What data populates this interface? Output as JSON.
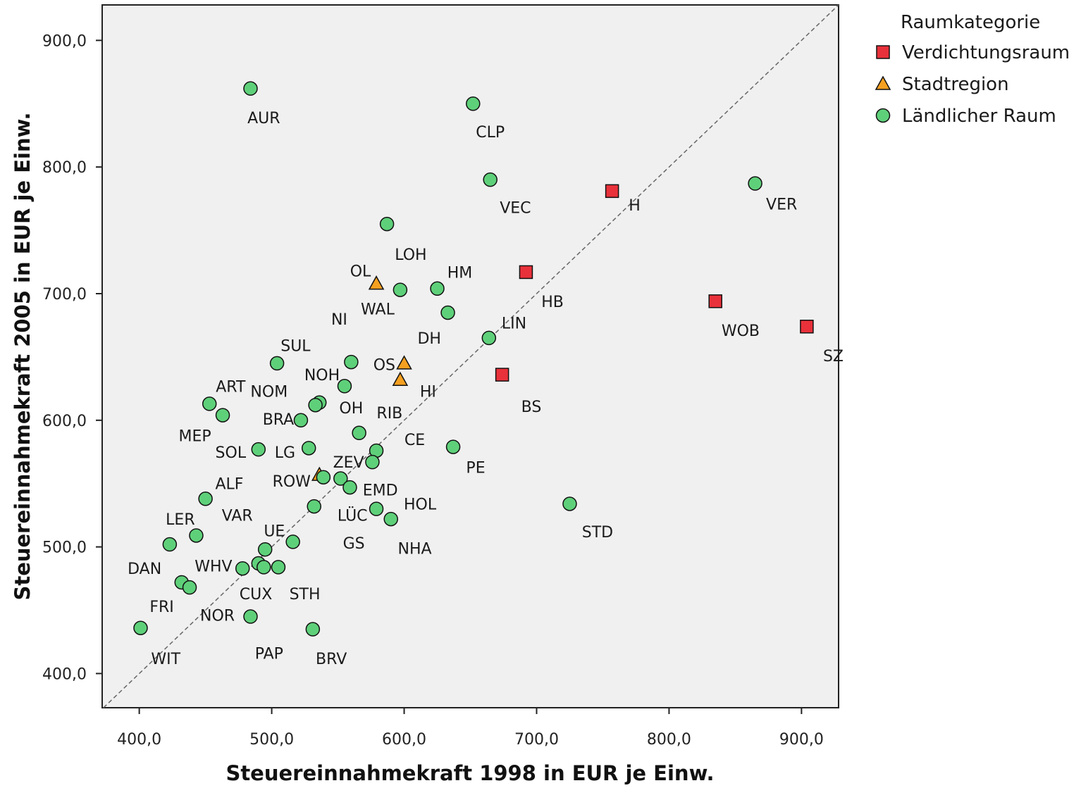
{
  "chart_data": {
    "type": "scatter",
    "xlabel": "Steuereinnahmekraft 1998 in EUR je Einw.",
    "ylabel": "Steuereinnahmekraft 2005 in EUR je Einw.",
    "xlim": [
      372,
      928
    ],
    "ylim": [
      373,
      928
    ],
    "xticks": [
      400,
      500,
      600,
      700,
      800,
      900
    ],
    "yticks": [
      400,
      500,
      600,
      700,
      800,
      900
    ],
    "xtick_labels": [
      "400,0",
      "500,0",
      "600,0",
      "700,0",
      "800,0",
      "900,0"
    ],
    "ytick_labels": [
      "400,0",
      "500,0",
      "600,0",
      "700,0",
      "800,0",
      "900,0"
    ],
    "grid": false,
    "reference_line": "diagonal",
    "legend": {
      "title": "Raumkategorie",
      "position": "right",
      "entries": [
        {
          "name": "Verdichtungsraum",
          "marker": "square",
          "color": "#e8313a"
        },
        {
          "name": "Stadtregion",
          "marker": "triangle",
          "color": "#f5a020"
        },
        {
          "name": "Ländlicher Raum",
          "marker": "circle",
          "color": "#5fd07a"
        }
      ]
    },
    "series": [
      {
        "name": "Verdichtungsraum",
        "points": [
          {
            "x": 757,
            "y": 781
          },
          {
            "x": 692,
            "y": 717
          },
          {
            "x": 835,
            "y": 694
          },
          {
            "x": 904,
            "y": 674
          },
          {
            "x": 674,
            "y": 636
          }
        ]
      },
      {
        "name": "Stadtregion",
        "points": [
          {
            "x": 579,
            "y": 708
          },
          {
            "x": 600,
            "y": 645
          },
          {
            "x": 597,
            "y": 632
          },
          {
            "x": 536,
            "y": 557
          }
        ]
      },
      {
        "name": "Ländlicher Raum",
        "points": [
          {
            "x": 484,
            "y": 862
          },
          {
            "x": 652,
            "y": 850
          },
          {
            "x": 665,
            "y": 790
          },
          {
            "x": 865,
            "y": 787
          },
          {
            "x": 587,
            "y": 755
          },
          {
            "x": 597,
            "y": 703
          },
          {
            "x": 625,
            "y": 704
          },
          {
            "x": 633,
            "y": 685
          },
          {
            "x": 664,
            "y": 665
          },
          {
            "x": 504,
            "y": 645
          },
          {
            "x": 560,
            "y": 646
          },
          {
            "x": 555,
            "y": 627
          },
          {
            "x": 536,
            "y": 614
          },
          {
            "x": 533,
            "y": 612
          },
          {
            "x": 453,
            "y": 613
          },
          {
            "x": 463,
            "y": 604
          },
          {
            "x": 522,
            "y": 600
          },
          {
            "x": 566,
            "y": 590
          },
          {
            "x": 490,
            "y": 577
          },
          {
            "x": 528,
            "y": 578
          },
          {
            "x": 579,
            "y": 576
          },
          {
            "x": 637,
            "y": 579
          },
          {
            "x": 576,
            "y": 567
          },
          {
            "x": 539,
            "y": 555
          },
          {
            "x": 552,
            "y": 554
          },
          {
            "x": 559,
            "y": 547
          },
          {
            "x": 450,
            "y": 538
          },
          {
            "x": 532,
            "y": 532
          },
          {
            "x": 579,
            "y": 530
          },
          {
            "x": 590,
            "y": 522
          },
          {
            "x": 725,
            "y": 534
          },
          {
            "x": 443,
            "y": 509
          },
          {
            "x": 423,
            "y": 502
          },
          {
            "x": 516,
            "y": 504
          },
          {
            "x": 495,
            "y": 498
          },
          {
            "x": 478,
            "y": 483
          },
          {
            "x": 490,
            "y": 487
          },
          {
            "x": 494,
            "y": 484
          },
          {
            "x": 505,
            "y": 484
          },
          {
            "x": 432,
            "y": 472
          },
          {
            "x": 438,
            "y": 468
          },
          {
            "x": 401,
            "y": 436
          },
          {
            "x": 484,
            "y": 445
          },
          {
            "x": 531,
            "y": 435
          }
        ]
      }
    ],
    "point_labels": [
      {
        "text": "AUR",
        "x": 494,
        "y": 839
      },
      {
        "text": "CLP",
        "x": 665,
        "y": 828
      },
      {
        "text": "VEC",
        "x": 684,
        "y": 768
      },
      {
        "text": "H",
        "x": 774,
        "y": 770
      },
      {
        "text": "VER",
        "x": 885,
        "y": 771
      },
      {
        "text": "LOH",
        "x": 605,
        "y": 731
      },
      {
        "text": "OL",
        "x": 567,
        "y": 718
      },
      {
        "text": "HM",
        "x": 642,
        "y": 717
      },
      {
        "text": "HB",
        "x": 712,
        "y": 694
      },
      {
        "text": "WAL",
        "x": 580,
        "y": 688
      },
      {
        "text": "NI",
        "x": 551,
        "y": 680
      },
      {
        "text": "LIN",
        "x": 683,
        "y": 677
      },
      {
        "text": "DH",
        "x": 619,
        "y": 665
      },
      {
        "text": "WOB",
        "x": 854,
        "y": 671
      },
      {
        "text": "SZ",
        "x": 924,
        "y": 651
      },
      {
        "text": "SUL",
        "x": 518,
        "y": 659
      },
      {
        "text": "OS",
        "x": 585,
        "y": 644
      },
      {
        "text": "NOH",
        "x": 538,
        "y": 636
      },
      {
        "text": "ART",
        "x": 469,
        "y": 627
      },
      {
        "text": "NOM",
        "x": 498,
        "y": 623
      },
      {
        "text": "HI",
        "x": 618,
        "y": 623
      },
      {
        "text": "BS",
        "x": 696,
        "y": 611
      },
      {
        "text": "OH",
        "x": 560,
        "y": 610
      },
      {
        "text": "RIB",
        "x": 589,
        "y": 606
      },
      {
        "text": "BRA",
        "x": 505,
        "y": 601
      },
      {
        "text": "MEP",
        "x": 442,
        "y": 588
      },
      {
        "text": "CE",
        "x": 608,
        "y": 585
      },
      {
        "text": "SOL",
        "x": 469,
        "y": 575
      },
      {
        "text": "LG",
        "x": 510,
        "y": 575
      },
      {
        "text": "ZEV",
        "x": 558,
        "y": 567
      },
      {
        "text": "PE",
        "x": 654,
        "y": 563
      },
      {
        "text": "ROW",
        "x": 515,
        "y": 552
      },
      {
        "text": "ALF",
        "x": 468,
        "y": 550
      },
      {
        "text": "EMD",
        "x": 582,
        "y": 545
      },
      {
        "text": "HOL",
        "x": 612,
        "y": 534
      },
      {
        "text": "LÜC",
        "x": 561,
        "y": 525
      },
      {
        "text": "VAR",
        "x": 474,
        "y": 525
      },
      {
        "text": "LER",
        "x": 431,
        "y": 522
      },
      {
        "text": "UE",
        "x": 502,
        "y": 513
      },
      {
        "text": "STD",
        "x": 746,
        "y": 512
      },
      {
        "text": "GS",
        "x": 562,
        "y": 503
      },
      {
        "text": "NHA",
        "x": 608,
        "y": 499
      },
      {
        "text": "DAN",
        "x": 404,
        "y": 483
      },
      {
        "text": "WHV",
        "x": 456,
        "y": 485
      },
      {
        "text": "CUX",
        "x": 488,
        "y": 463
      },
      {
        "text": "STH",
        "x": 525,
        "y": 463
      },
      {
        "text": "FRI",
        "x": 417,
        "y": 453
      },
      {
        "text": "NOR",
        "x": 459,
        "y": 446
      },
      {
        "text": "PAP",
        "x": 498,
        "y": 416
      },
      {
        "text": "BRV",
        "x": 545,
        "y": 412
      },
      {
        "text": "WIT",
        "x": 420,
        "y": 412
      }
    ]
  }
}
